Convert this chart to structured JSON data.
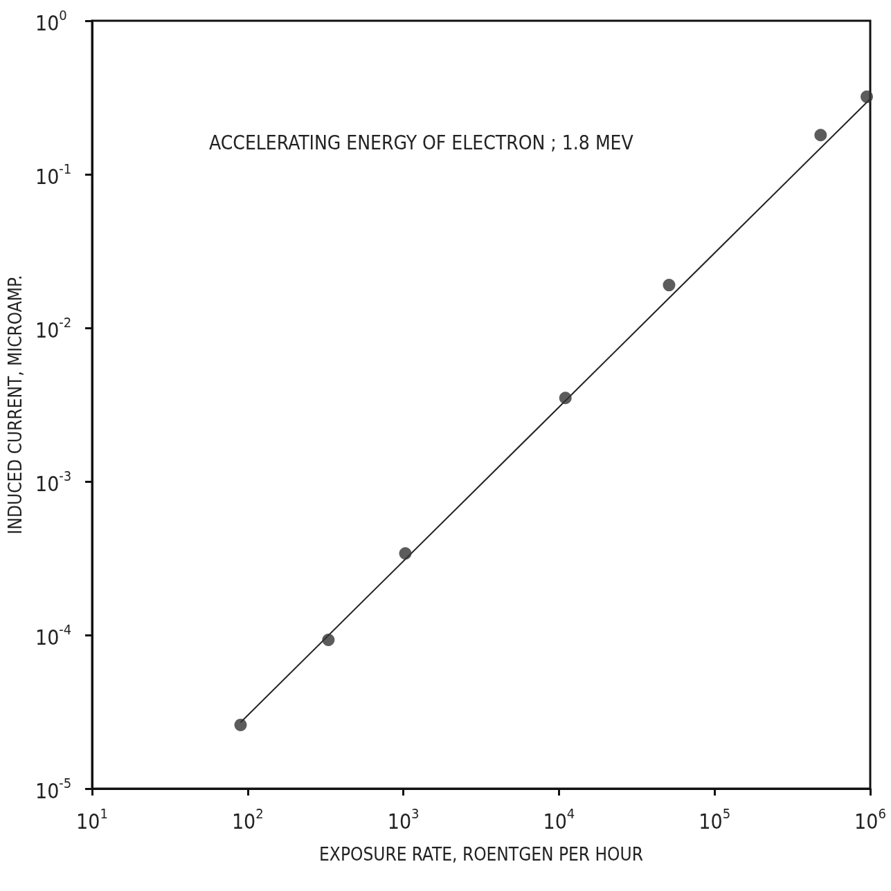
{
  "chart_data": {
    "type": "scatter",
    "xlabel": "EXPOSURE RATE, ROENTGEN PER HOUR",
    "ylabel": "INDUCED CURRENT, MICROAMP.",
    "annotations": [
      "ACCELERATING ENERGY OF ELECTRON ; 1.8 MEV"
    ],
    "log": "xy",
    "grid": false,
    "marker": "circle",
    "xlim": [
      10,
      1000000
    ],
    "ylim": [
      1e-05,
      1
    ],
    "xticks": [
      {
        "value": 10,
        "label": "10$^{1}$"
      },
      {
        "value": 100,
        "label": "10$^{2}$"
      },
      {
        "value": 1000,
        "label": "10$^{3}$"
      },
      {
        "value": 10000,
        "label": "10$^{4}$"
      },
      {
        "value": 100000,
        "label": "10$^{5}$"
      },
      {
        "value": 1000000,
        "label": "10$^{6}$"
      }
    ],
    "yticks": [
      {
        "value": 1e-05,
        "label": "10$^{-5}$"
      },
      {
        "value": 0.0001,
        "label": "10$^{-4}$"
      },
      {
        "value": 0.001,
        "label": "10$^{-3}$"
      },
      {
        "value": 0.01,
        "label": "10$^{-2}$"
      },
      {
        "value": 0.1,
        "label": "10$^{-1}$"
      },
      {
        "value": 1,
        "label": "10$^{0}$"
      }
    ],
    "series": [
      {
        "type": "scatter",
        "color": "#333333",
        "x": [
          90,
          330,
          1030,
          11000,
          51000,
          480000,
          950000
        ],
        "values": [
          2.6e-05,
          9.3e-05,
          0.00034,
          0.0035,
          0.019,
          0.18,
          0.32
        ]
      },
      {
        "type": "line",
        "color": "#222222",
        "marker": "none",
        "line_style": "solid",
        "x": [
          90,
          1000000
        ],
        "values": [
          2.7e-05,
          0.31
        ]
      }
    ]
  }
}
